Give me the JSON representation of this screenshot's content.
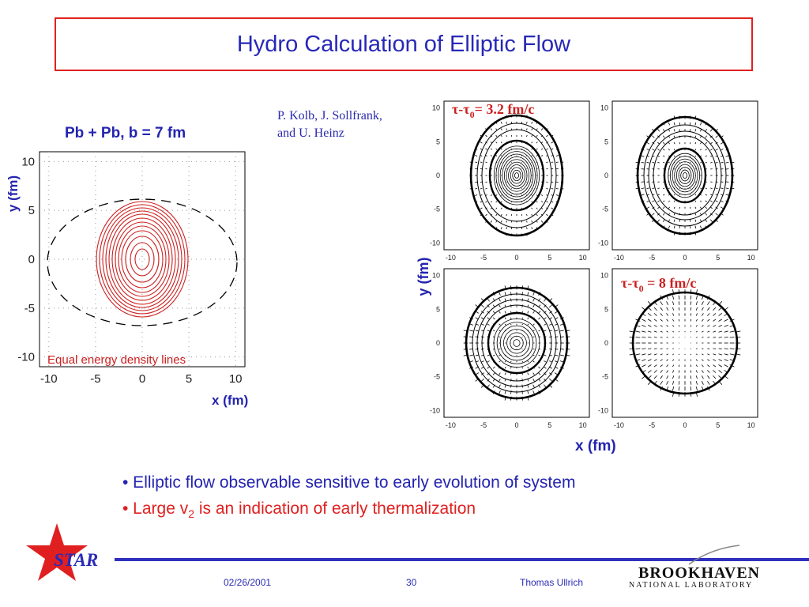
{
  "slide": {
    "title": "Hydro Calculation of Elliptic Flow",
    "credit_line1": "P. Kolb, J. Sollfrank,",
    "credit_line2": "and U. Heinz",
    "bullet1": "• Elliptic flow observable sensitive to early evolution of system",
    "bullet2_pre": "• Large v",
    "bullet2_sub": "2",
    "bullet2_post": " is an indication of early thermalization"
  },
  "left_plot": {
    "title": "Pb + Pb, b = 7 fm",
    "xlabel": "x (fm)",
    "ylabel": "y (fm)",
    "annotation": "Equal energy density  lines",
    "ticks": [
      "-10",
      "-5",
      "0",
      "5",
      "10"
    ],
    "contour_color": "#cc2020"
  },
  "right_plots": {
    "xlabel": "x (fm)",
    "ylabel": "y (fm)",
    "ticks": [
      "-10",
      "-5",
      "0",
      "5",
      "10"
    ],
    "label_tau1_prefix": "τ-τ",
    "label_tau1_sub": "0",
    "label_tau1_value": "= 3.2 fm/c",
    "label_tau2_prefix": "τ-τ",
    "label_tau2_sub": "0",
    "label_tau2_value": " = 8 fm/c",
    "label_color": "#cc2020"
  },
  "footer": {
    "date": "02/26/2001",
    "page": "30",
    "author": "Thomas Ullrich",
    "logo_left": "STAR",
    "logo_right_name": "BROOKHAVEN",
    "logo_right_sub": "NATIONAL LABORATORY",
    "accent": "#3030c0"
  }
}
